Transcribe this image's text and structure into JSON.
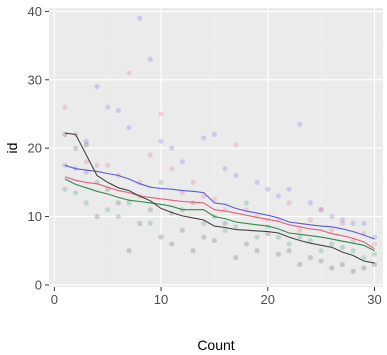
{
  "chart_data": {
    "type": "scatter",
    "xlabel": "Count",
    "ylabel": "id",
    "xlim": [
      -0.5,
      30.8
    ],
    "ylim": [
      -0.3,
      40.5
    ],
    "x_ticks": [
      0,
      10,
      20,
      30
    ],
    "y_ticks": [
      0,
      10,
      20,
      30,
      40
    ],
    "grid": true,
    "legend": "none",
    "colors": {
      "panel_background": "#ebebeb",
      "grid_major": "#ffffff",
      "grid_minor": "#f2f2f2",
      "blue": "#5a5adc",
      "red": "#e0607a",
      "green": "#2e8b4e",
      "gray": "#444444"
    },
    "series": [
      {
        "color": "blue",
        "points": [
          [
            1,
            17.5
          ],
          [
            2,
            17
          ],
          [
            3,
            21
          ],
          [
            3,
            16.5
          ],
          [
            4,
            29
          ],
          [
            5,
            26
          ],
          [
            6,
            25.5
          ],
          [
            7,
            23
          ],
          [
            8,
            39
          ],
          [
            9,
            33
          ],
          [
            10,
            21
          ],
          [
            11,
            20
          ],
          [
            12,
            18
          ],
          [
            14,
            21.5
          ],
          [
            15,
            22
          ],
          [
            16,
            17
          ],
          [
            17,
            16
          ],
          [
            19,
            15
          ],
          [
            20,
            14
          ],
          [
            21,
            13
          ],
          [
            22,
            14
          ],
          [
            23,
            23.5
          ],
          [
            24,
            12
          ],
          [
            25,
            11
          ],
          [
            26,
            10
          ],
          [
            27,
            9.5
          ],
          [
            28,
            9
          ],
          [
            29,
            9
          ],
          [
            30,
            7
          ]
        ],
        "trend": [
          [
            1,
            17.5
          ],
          [
            2,
            17
          ],
          [
            3,
            16.8
          ],
          [
            4,
            16.6
          ],
          [
            5,
            16.3
          ],
          [
            6,
            16
          ],
          [
            7,
            15.5
          ],
          [
            8,
            14.8
          ],
          [
            9,
            14.3
          ],
          [
            10,
            14.1
          ],
          [
            11,
            14
          ],
          [
            12,
            13.8
          ],
          [
            13,
            13.7
          ],
          [
            14,
            13.5
          ],
          [
            15,
            12
          ],
          [
            16,
            11.8
          ],
          [
            17,
            11.2
          ],
          [
            18,
            10.8
          ],
          [
            19,
            10.5
          ],
          [
            20,
            10.2
          ],
          [
            21,
            9.8
          ],
          [
            22,
            9.2
          ],
          [
            23,
            9
          ],
          [
            24,
            8.8
          ],
          [
            25,
            8.6
          ],
          [
            26,
            8.5
          ],
          [
            27,
            8.2
          ],
          [
            28,
            7.8
          ],
          [
            29,
            7.3
          ],
          [
            30,
            6.7
          ]
        ]
      },
      {
        "color": "red",
        "points": [
          [
            1,
            26
          ],
          [
            2,
            22
          ],
          [
            3,
            18
          ],
          [
            4,
            17.5
          ],
          [
            5,
            17.5
          ],
          [
            6,
            16
          ],
          [
            7,
            31
          ],
          [
            8,
            15
          ],
          [
            9,
            19
          ],
          [
            10,
            25
          ],
          [
            11,
            17
          ],
          [
            12,
            13.5
          ],
          [
            13,
            15
          ],
          [
            14,
            13
          ],
          [
            15,
            12.5
          ],
          [
            16,
            11
          ],
          [
            17,
            20.5
          ],
          [
            18,
            11
          ],
          [
            19,
            10
          ],
          [
            20,
            9.5
          ],
          [
            21,
            9.5
          ],
          [
            22,
            12
          ],
          [
            23,
            8
          ],
          [
            24,
            9.5
          ],
          [
            25,
            11
          ],
          [
            26,
            8
          ],
          [
            27,
            9
          ],
          [
            28,
            6.5
          ],
          [
            29,
            7.5
          ],
          [
            30,
            6
          ]
        ],
        "trend": [
          [
            1,
            15.8
          ],
          [
            2,
            15.3
          ],
          [
            3,
            15
          ],
          [
            4,
            14.8
          ],
          [
            5,
            14.3
          ],
          [
            6,
            13.8
          ],
          [
            7,
            13.5
          ],
          [
            8,
            13
          ],
          [
            9,
            12.8
          ],
          [
            10,
            12.6
          ],
          [
            11,
            12.4
          ],
          [
            12,
            12.2
          ],
          [
            13,
            12.1
          ],
          [
            14,
            12
          ],
          [
            15,
            11
          ],
          [
            16,
            10.8
          ],
          [
            17,
            10.5
          ],
          [
            18,
            10.2
          ],
          [
            19,
            9.9
          ],
          [
            20,
            9.6
          ],
          [
            21,
            9.3
          ],
          [
            22,
            8.8
          ],
          [
            23,
            8.5
          ],
          [
            24,
            8.2
          ],
          [
            25,
            8
          ],
          [
            26,
            7.5
          ],
          [
            27,
            7.2
          ],
          [
            28,
            6.8
          ],
          [
            29,
            6.3
          ],
          [
            30,
            5.3
          ]
        ]
      },
      {
        "color": "green",
        "points": [
          [
            1,
            14
          ],
          [
            2,
            13.5
          ],
          [
            3,
            12
          ],
          [
            4,
            15
          ],
          [
            5,
            11
          ],
          [
            6,
            10
          ],
          [
            7,
            12
          ],
          [
            8,
            13
          ],
          [
            9,
            9
          ],
          [
            10,
            15
          ],
          [
            11,
            10.5
          ],
          [
            12,
            11
          ],
          [
            13,
            12
          ],
          [
            14,
            9
          ],
          [
            15,
            10
          ],
          [
            16,
            8
          ],
          [
            17,
            8.5
          ],
          [
            18,
            12
          ],
          [
            19,
            7
          ],
          [
            20,
            8.5
          ],
          [
            21,
            7
          ],
          [
            22,
            6
          ],
          [
            23,
            7
          ],
          [
            24,
            6.5
          ],
          [
            25,
            5
          ],
          [
            26,
            6
          ],
          [
            27,
            5.5
          ],
          [
            28,
            5
          ],
          [
            29,
            4
          ],
          [
            30,
            4.5
          ]
        ],
        "trend": [
          [
            1,
            15.5
          ],
          [
            2,
            14.7
          ],
          [
            3,
            14.2
          ],
          [
            4,
            13.7
          ],
          [
            5,
            13.3
          ],
          [
            6,
            12.8
          ],
          [
            7,
            12.4
          ],
          [
            8,
            12.2
          ],
          [
            9,
            12
          ],
          [
            10,
            11.8
          ],
          [
            11,
            11.5
          ],
          [
            12,
            11
          ],
          [
            13,
            11
          ],
          [
            14,
            11
          ],
          [
            15,
            10
          ],
          [
            16,
            9.7
          ],
          [
            17,
            9.2
          ],
          [
            18,
            9
          ],
          [
            19,
            8.8
          ],
          [
            20,
            8.6
          ],
          [
            21,
            8.2
          ],
          [
            22,
            7.6
          ],
          [
            23,
            7.4
          ],
          [
            24,
            7.2
          ],
          [
            25,
            7
          ],
          [
            26,
            6.7
          ],
          [
            27,
            6.4
          ],
          [
            28,
            6.1
          ],
          [
            29,
            5.8
          ],
          [
            30,
            5
          ]
        ]
      },
      {
        "color": "gray",
        "points": [
          [
            1,
            22
          ],
          [
            2,
            20
          ],
          [
            3,
            20.5
          ],
          [
            4,
            10
          ],
          [
            5,
            14
          ],
          [
            6,
            12
          ],
          [
            7,
            5
          ],
          [
            8,
            9
          ],
          [
            9,
            11
          ],
          [
            10,
            7
          ],
          [
            11,
            6
          ],
          [
            12,
            8
          ],
          [
            13,
            5
          ],
          [
            14,
            7
          ],
          [
            15,
            6.5
          ],
          [
            16,
            9
          ],
          [
            17,
            4
          ],
          [
            18,
            6
          ],
          [
            19,
            5
          ],
          [
            20,
            7.5
          ],
          [
            21,
            4.5
          ],
          [
            22,
            5
          ],
          [
            23,
            3
          ],
          [
            24,
            4
          ],
          [
            25,
            3.5
          ],
          [
            26,
            2.5
          ],
          [
            27,
            3
          ],
          [
            28,
            2
          ],
          [
            29,
            2.5
          ],
          [
            30,
            3
          ]
        ],
        "trend": [
          [
            1,
            22.2
          ],
          [
            2,
            22
          ],
          [
            3,
            19
          ],
          [
            4,
            16
          ],
          [
            5,
            15
          ],
          [
            6,
            14.2
          ],
          [
            7,
            13.8
          ],
          [
            8,
            13
          ],
          [
            9,
            12.3
          ],
          [
            10,
            11.2
          ],
          [
            11,
            10.6
          ],
          [
            12,
            10.1
          ],
          [
            13,
            9.8
          ],
          [
            14,
            9.5
          ],
          [
            15,
            8.6
          ],
          [
            16,
            8.4
          ],
          [
            17,
            8.1
          ],
          [
            18,
            8
          ],
          [
            19,
            7.9
          ],
          [
            20,
            7.8
          ],
          [
            21,
            7.6
          ],
          [
            22,
            7
          ],
          [
            23,
            6.5
          ],
          [
            24,
            6.1
          ],
          [
            25,
            5.8
          ],
          [
            26,
            5.5
          ],
          [
            27,
            4.8
          ],
          [
            28,
            4.3
          ],
          [
            29,
            3.5
          ],
          [
            30,
            3.2
          ]
        ]
      }
    ]
  }
}
